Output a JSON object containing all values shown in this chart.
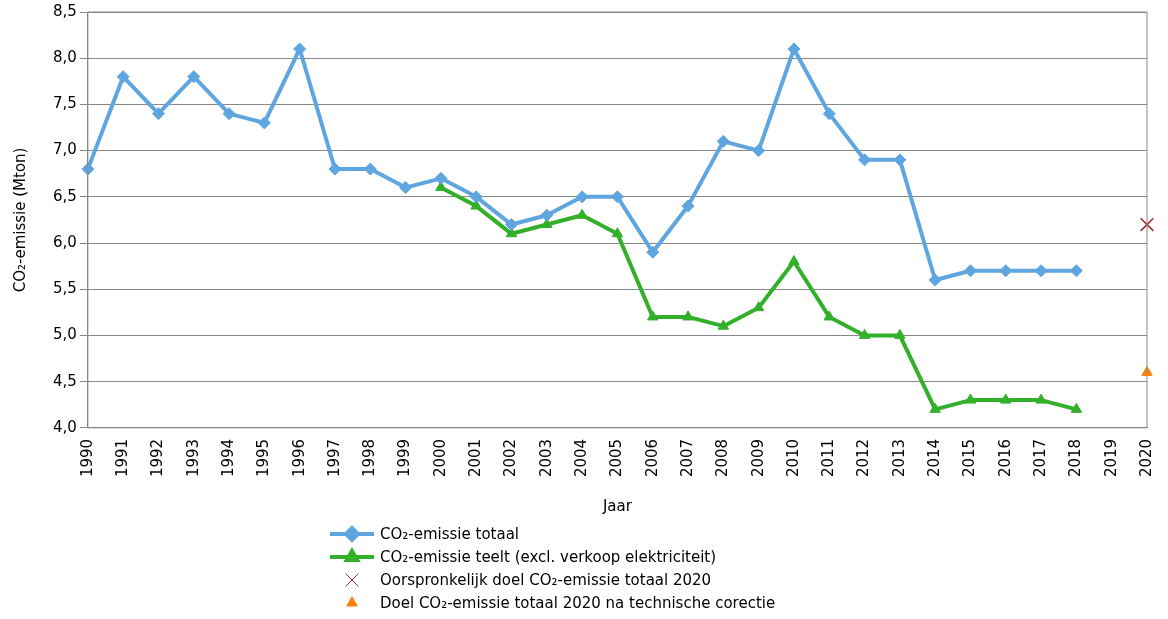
{
  "chart_data": {
    "type": "line",
    "xlabel": "Jaar",
    "ylabel": "CO₂-emissie (Mton)",
    "categories": [
      "1990",
      "1991",
      "1992",
      "1993",
      "1994",
      "1995",
      "1996",
      "1997",
      "1998",
      "1999",
      "2000",
      "2001",
      "2002",
      "2003",
      "2004",
      "2005",
      "2006",
      "2007",
      "2008",
      "2009",
      "2010",
      "2011",
      "2012",
      "2013",
      "2014",
      "2015",
      "2016",
      "2017",
      "2018",
      "2019",
      "2020"
    ],
    "ylim": [
      4,
      8.5
    ],
    "yticks": [
      {
        "value": 4,
        "label": "4,0"
      },
      {
        "value": 4.5,
        "label": "4,5"
      },
      {
        "value": 5,
        "label": "5,0"
      },
      {
        "value": 5.5,
        "label": "5,5"
      },
      {
        "value": 6,
        "label": "6,0"
      },
      {
        "value": 6.5,
        "label": "6,5"
      },
      {
        "value": 7,
        "label": "7,0"
      },
      {
        "value": 7.5,
        "label": "7,5"
      },
      {
        "value": 8,
        "label": "8,0"
      },
      {
        "value": 8.5,
        "label": "8,5"
      }
    ],
    "grid": "y",
    "legend": "bottom",
    "series": [
      {
        "name": "CO₂-emissie totaal",
        "color": "#5fa5e0",
        "marker": "diamond",
        "values": [
          6.8,
          7.8,
          7.4,
          7.8,
          7.4,
          7.3,
          8.1,
          6.8,
          6.8,
          6.6,
          6.7,
          6.5,
          6.2,
          6.3,
          6.5,
          6.5,
          5.9,
          6.4,
          7.1,
          7.0,
          8.1,
          7.4,
          6.9,
          6.9,
          5.6,
          5.7,
          5.7,
          5.7,
          5.7,
          null,
          null
        ]
      },
      {
        "name": "CO₂-emissie teelt (excl. verkoop elektriciteit)",
        "color": "#33b02a",
        "marker": "triangle",
        "values": [
          null,
          null,
          null,
          null,
          null,
          null,
          null,
          null,
          null,
          null,
          6.6,
          6.4,
          6.1,
          6.2,
          6.3,
          6.1,
          5.2,
          5.2,
          5.1,
          5.3,
          5.8,
          5.2,
          5.0,
          5.0,
          4.2,
          4.3,
          4.3,
          4.3,
          4.2,
          null,
          null
        ]
      },
      {
        "name": "Oorspronkelijk doel CO₂-emissie totaal 2020",
        "type": "scatter",
        "color": "#a0282d",
        "marker": "cross",
        "values": [
          null,
          null,
          null,
          null,
          null,
          null,
          null,
          null,
          null,
          null,
          null,
          null,
          null,
          null,
          null,
          null,
          null,
          null,
          null,
          null,
          null,
          null,
          null,
          null,
          null,
          null,
          null,
          null,
          null,
          null,
          6.2
        ]
      },
      {
        "name": "Doel CO₂-emissie totaal 2020 na technische corectie",
        "type": "scatter",
        "color": "#ff8000",
        "marker": "triangle",
        "values": [
          null,
          null,
          null,
          null,
          null,
          null,
          null,
          null,
          null,
          null,
          null,
          null,
          null,
          null,
          null,
          null,
          null,
          null,
          null,
          null,
          null,
          null,
          null,
          null,
          null,
          null,
          null,
          null,
          null,
          null,
          4.6
        ]
      }
    ]
  }
}
